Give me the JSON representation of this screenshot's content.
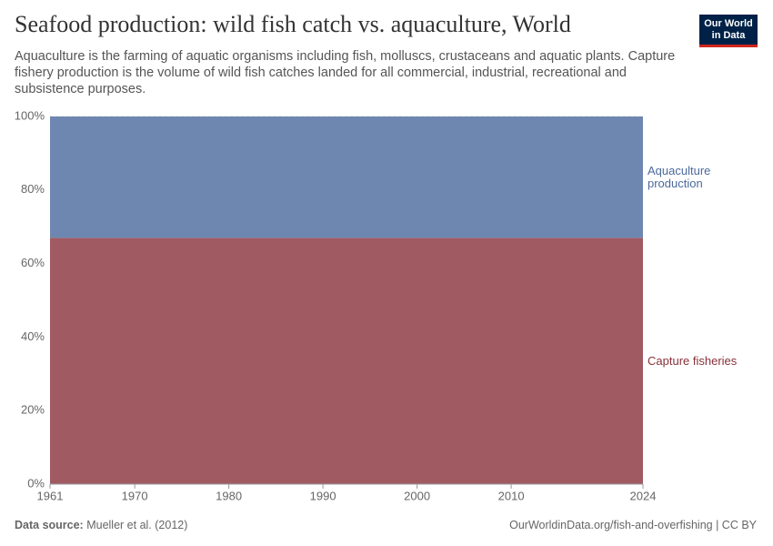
{
  "header": {
    "title": "Seafood production: wild fish catch vs. aquaculture, World",
    "subtitle": "Aquaculture is the farming of aquatic organisms including fish, molluscs, crustaceans and aquatic plants. Capture fishery production is the volume of wild fish catches landed for all commercial, industrial, recreational and subsistence purposes.",
    "logo": [
      "Our World",
      "in Data"
    ]
  },
  "chart_data": {
    "type": "stacked_area",
    "x": [
      1961,
      2024
    ],
    "xlim": [
      1961,
      2024
    ],
    "xticks": [
      1961,
      1970,
      1980,
      1990,
      2000,
      2010,
      2024
    ],
    "ylim": [
      0,
      100
    ],
    "yticks": [
      {
        "value": 0,
        "label": "0%"
      },
      {
        "value": 20,
        "label": "20%"
      },
      {
        "value": 40,
        "label": "40%"
      },
      {
        "value": 60,
        "label": "60%"
      },
      {
        "value": 80,
        "label": "80%"
      },
      {
        "value": 100,
        "label": "100%"
      }
    ],
    "grid": true,
    "series": [
      {
        "name": "Capture fisheries",
        "color": "#a05a62",
        "label_color": "#883039",
        "values": [
          67,
          67
        ]
      },
      {
        "name": "Aquaculture production",
        "color": "#6d87b0",
        "label_color": "#4c6a9c",
        "values": [
          33,
          33
        ]
      }
    ]
  },
  "footer": {
    "source_label": "Data source:",
    "source": "Mueller et al. (2012)",
    "url": "OurWorldinData.org/fish-and-overfishing | CC BY"
  }
}
